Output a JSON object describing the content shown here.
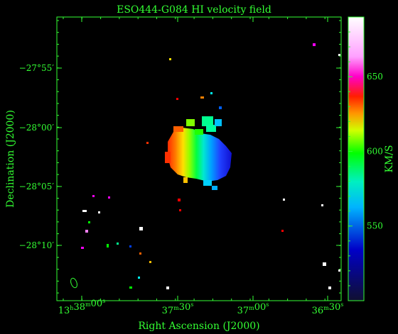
{
  "chart_data": {
    "type": "heatmap",
    "title": "ESO444-G084   HI velocity field",
    "xlabel": "Right Ascension (J2000)",
    "ylabel": "Declination (J2000)",
    "colorbar_label": "KM/S",
    "colorbar_ticks": [
      "550",
      "600",
      "650"
    ],
    "colorbar_range": [
      500,
      690
    ],
    "colors": {
      "axes": "#33ff33",
      "background": "#000000"
    },
    "x_ticks": [
      {
        "h": "13",
        "m": "38",
        "s": "00"
      },
      {
        "h": "",
        "m": "37",
        "s": "30"
      },
      {
        "h": "",
        "m": "37",
        "s": "00"
      },
      {
        "h": "",
        "m": "36",
        "s": "30"
      }
    ],
    "y_ticks": [
      "−27°55′",
      "−28°00′",
      "−28°05′",
      "−28°10′"
    ],
    "velocity_gradient": {
      "high_side": "east (left), ~620 km/s",
      "low_side": "west (right), ~545 km/s",
      "systemic_approx": 585
    }
  }
}
